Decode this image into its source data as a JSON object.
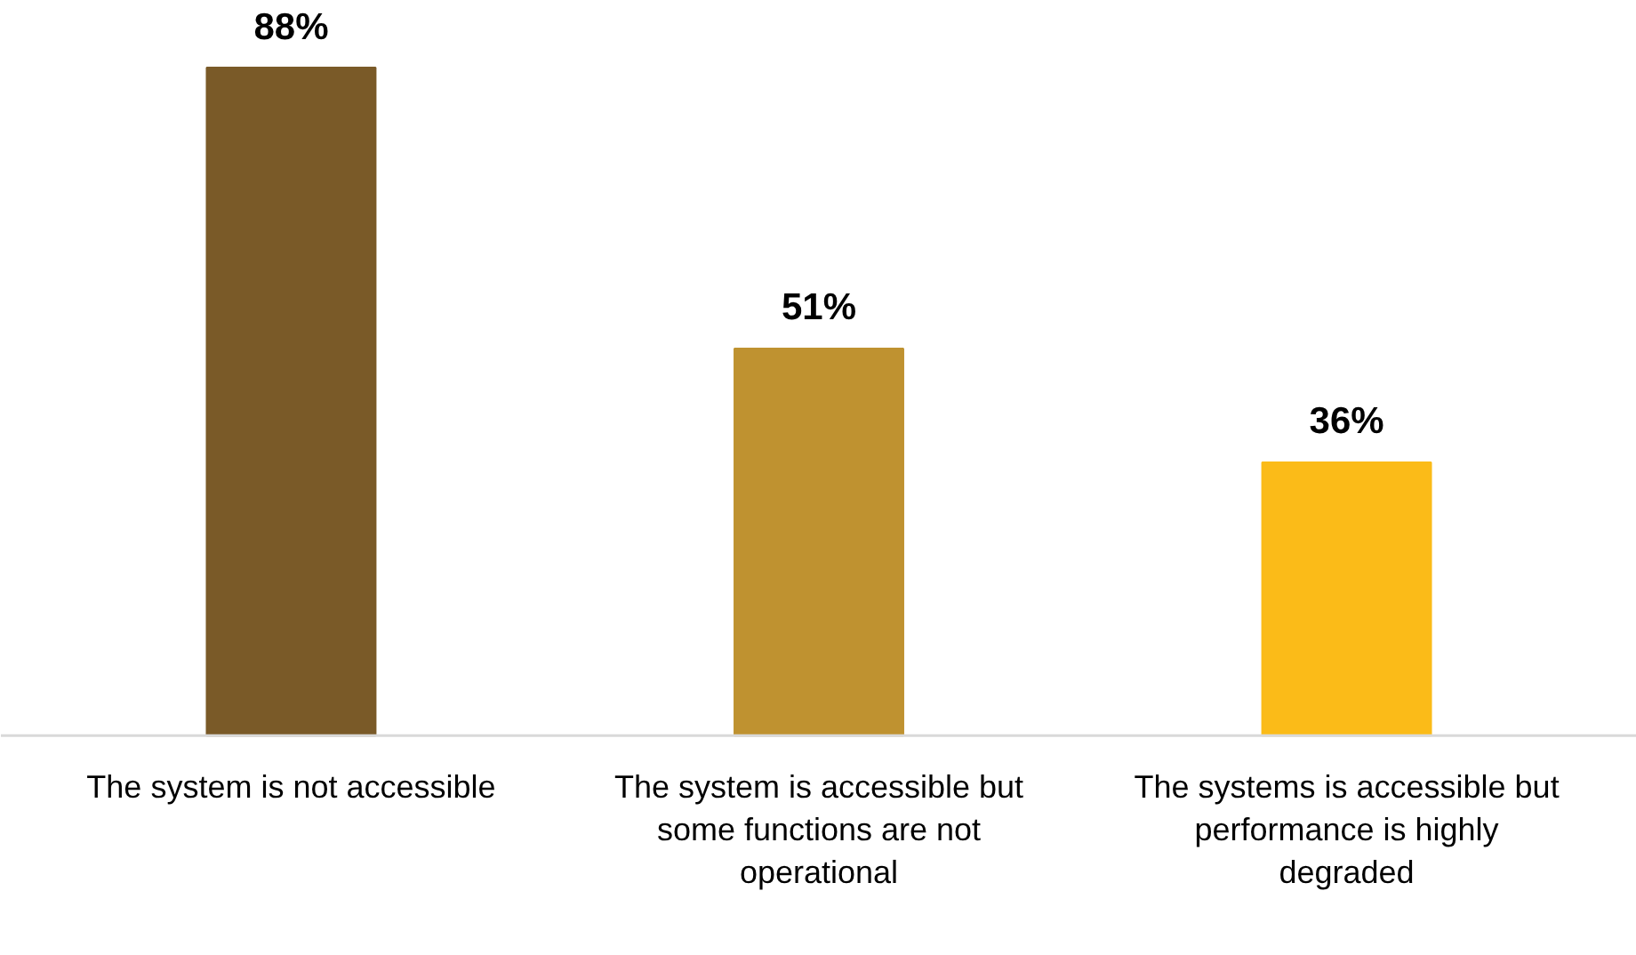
{
  "chart_data": {
    "type": "bar",
    "categories": [
      "The system is not accessible",
      "The system is accessible but some functions are not operational",
      "The systems is accessible but performance is highly degraded"
    ],
    "values": [
      88,
      51,
      36
    ],
    "colors": [
      "#7a5a28",
      "#bf9230",
      "#fbbb18"
    ],
    "data_labels": true,
    "value_labels": [
      "88%",
      "51%",
      "36%"
    ],
    "grid": false
  }
}
